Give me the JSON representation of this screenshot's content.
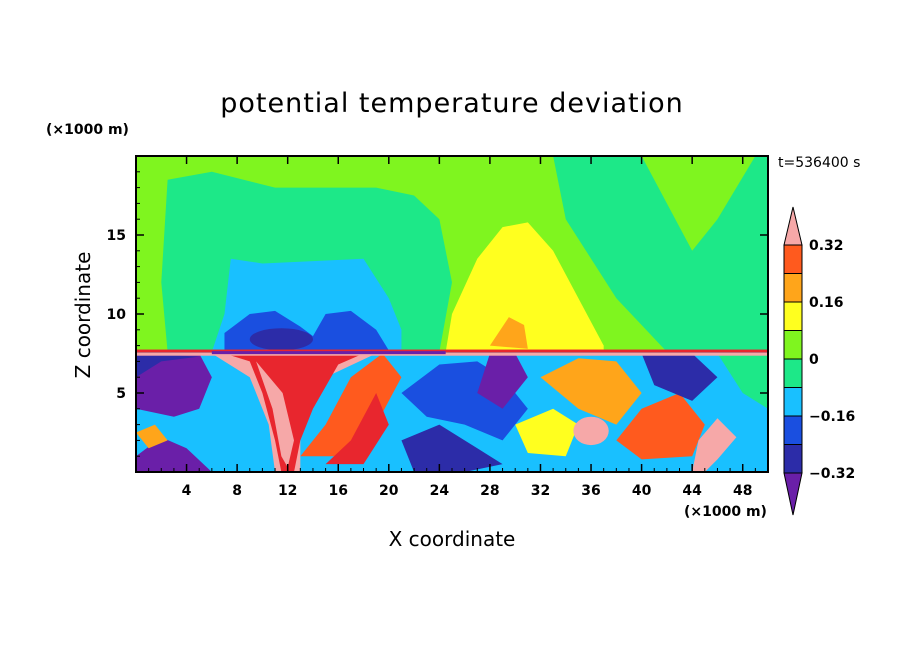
{
  "chart_data": {
    "type": "heatmap",
    "title": "potential temperature deviation",
    "xlabel": "X coordinate",
    "ylabel": "Z coordinate",
    "x_unit": "(×1000 m)",
    "y_unit": "(×1000 m)",
    "time_label": "t=536400 s",
    "xlim": [
      0,
      50
    ],
    "ylim": [
      0,
      20
    ],
    "x_ticks": [
      4,
      8,
      12,
      16,
      20,
      24,
      28,
      32,
      36,
      40,
      44,
      48
    ],
    "y_ticks": [
      5,
      10,
      15
    ],
    "colorbar": {
      "levels": [
        -0.4,
        -0.32,
        -0.24,
        -0.16,
        -0.08,
        0,
        0.08,
        0.16,
        0.24,
        0.32,
        0.4
      ],
      "colors": [
        "#6a1fa8",
        "#2c2ca8",
        "#1a4fe0",
        "#19c0ff",
        "#1de888",
        "#7ff51f",
        "#ffff1f",
        "#ffa51a",
        "#ff5a1e",
        "#e8262e",
        "#f6a8a8"
      ],
      "labels": [
        "0.32",
        "0.16",
        "0",
        "-0.16",
        "-0.32"
      ],
      "label_values": [
        0.32,
        0.16,
        0,
        -0.16,
        -0.32
      ]
    }
  }
}
